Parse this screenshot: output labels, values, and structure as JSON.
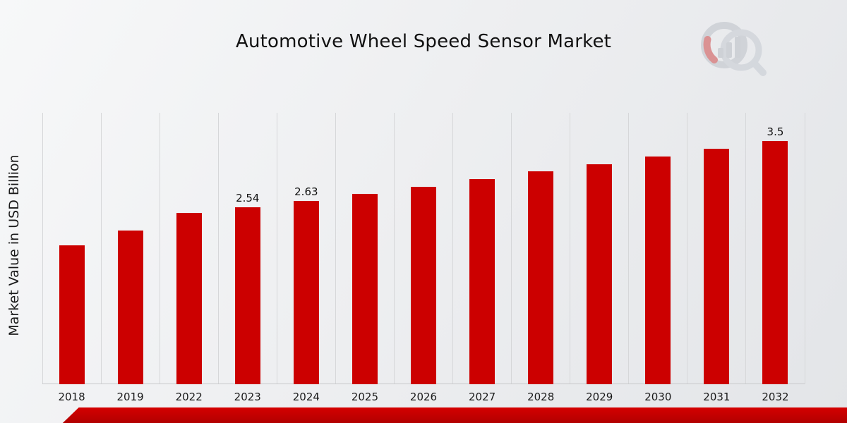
{
  "title": "Automotive Wheel Speed Sensor Market",
  "y_axis_label": "Market Value in USD Billion",
  "colors": {
    "bar": "#CC0000",
    "ribbon": "#C40000",
    "gridline": "#D6D7D9",
    "background_start": "#F7F8F9",
    "background_end": "#E3E5E8",
    "label_text": "#111111"
  },
  "watermark": {
    "name": "market-research-logo-watermark"
  },
  "chart_data": {
    "type": "bar",
    "title": "Automotive Wheel Speed Sensor Market",
    "xlabel": "",
    "ylabel": "Market Value in USD Billion",
    "categories": [
      "2018",
      "2019",
      "2022",
      "2023",
      "2024",
      "2025",
      "2026",
      "2027",
      "2028",
      "2029",
      "2030",
      "2031",
      "2032"
    ],
    "values": [
      2.0,
      2.21,
      2.46,
      2.54,
      2.63,
      2.74,
      2.84,
      2.95,
      3.06,
      3.16,
      3.27,
      3.38,
      3.5
    ],
    "data_labels": [
      "",
      "",
      "",
      "2.54",
      "2.63",
      "",
      "",
      "",
      "",
      "",
      "",
      "",
      "3.5"
    ],
    "ylim": [
      0,
      3.9
    ],
    "grid": "vertical-only",
    "legend": false,
    "bar_color": "#CC0000"
  }
}
